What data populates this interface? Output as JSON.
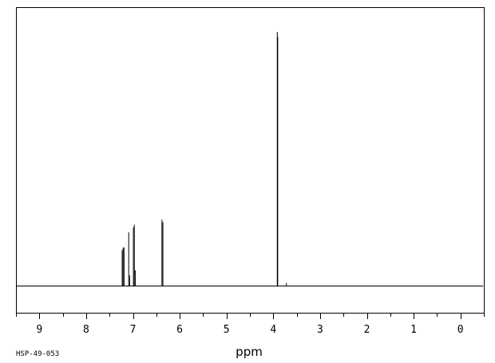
{
  "chart_data": {
    "type": "line",
    "xlabel": "ppm",
    "ylabel": "",
    "xlim": [
      9.5,
      -0.5
    ],
    "ylim": [
      0,
      1
    ],
    "x_reversed": true,
    "xticks": [
      "9",
      "8",
      "7",
      "6",
      "5",
      "4",
      "3",
      "2",
      "1",
      "0"
    ],
    "minor_tick_step": 0.5,
    "grid": false,
    "code_label": "HSP-49-053",
    "series": [
      {
        "type": "peaks",
        "x": [
          7.23,
          7.21,
          7.19,
          7.09,
          7.07,
          6.99,
          6.97,
          6.95,
          6.38,
          6.36,
          3.915,
          3.905,
          3.72
        ],
        "values": [
          0.14,
          0.15,
          0.15,
          0.21,
          0.04,
          0.23,
          0.24,
          0.06,
          0.26,
          0.25,
          1.0,
          0.98,
          0.01
        ]
      }
    ],
    "baseline_y": 0
  }
}
